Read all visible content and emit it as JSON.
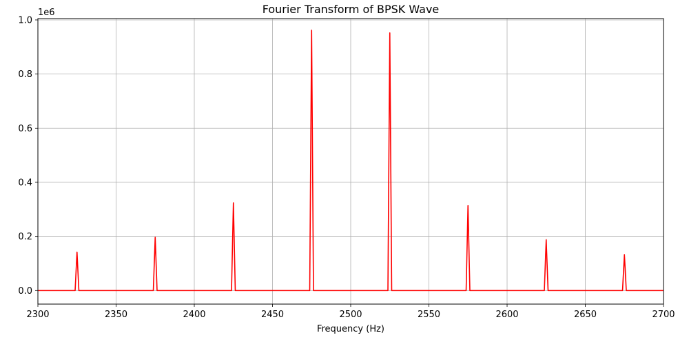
{
  "chart_data": {
    "type": "line",
    "title": "Fourier Transform of BPSK Wave",
    "xlabel": "Frequency (Hz)",
    "ylabel": "",
    "y_offset_label": "1e6",
    "xlim": [
      2300,
      2700
    ],
    "ylim": [
      -0.05,
      1.005
    ],
    "grid": true,
    "line_color": "#ff0000",
    "x_ticks": [
      2300,
      2350,
      2400,
      2450,
      2500,
      2550,
      2600,
      2650,
      2700
    ],
    "x_tick_labels": [
      "2300",
      "2350",
      "2400",
      "2450",
      "2500",
      "2550",
      "2600",
      "2650",
      "2700"
    ],
    "y_ticks": [
      0.0,
      0.2,
      0.4,
      0.6,
      0.8,
      1.0
    ],
    "y_tick_labels": [
      "0.0",
      "0.2",
      "0.4",
      "0.6",
      "0.8",
      "1.0"
    ],
    "series": [
      {
        "peaks": [
          {
            "x": 2325,
            "y": 0.142
          },
          {
            "x": 2375,
            "y": 0.197
          },
          {
            "x": 2425,
            "y": 0.324
          },
          {
            "x": 2475,
            "y": 0.962
          },
          {
            "x": 2525,
            "y": 0.952
          },
          {
            "x": 2575,
            "y": 0.314
          },
          {
            "x": 2625,
            "y": 0.188
          },
          {
            "x": 2675,
            "y": 0.133
          }
        ]
      }
    ]
  }
}
